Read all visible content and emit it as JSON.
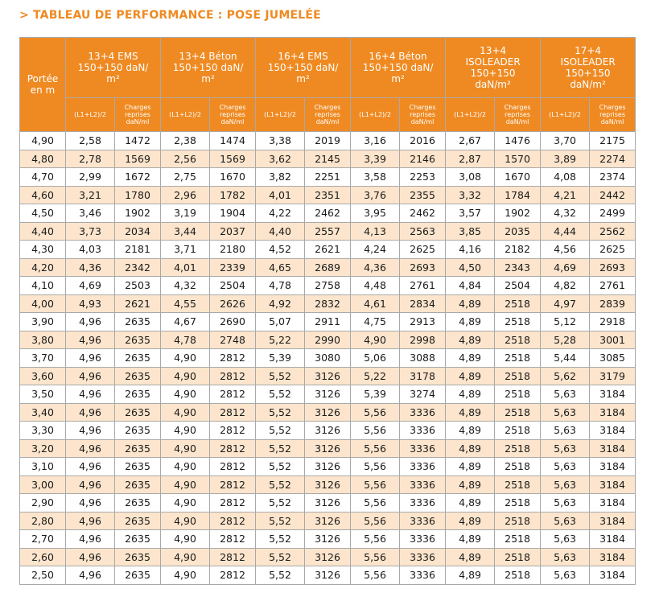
{
  "title": "> TABLEAU DE PERFORMANCE : POSE JUMELÉE",
  "header": {
    "first_col": [
      "Portée",
      "en m"
    ],
    "groups": [
      {
        "lines": [
          "13+4 EMS",
          "150+150 daN/",
          "m²"
        ]
      },
      {
        "lines": [
          "13+4 Béton",
          "150+150 daN/",
          "m²"
        ]
      },
      {
        "lines": [
          "16+4 EMS",
          "150+150 daN/",
          "m²"
        ]
      },
      {
        "lines": [
          "16+4 Béton",
          "150+150 daN/",
          "m²"
        ]
      },
      {
        "lines": [
          "13+4",
          "ISOLEADER",
          "150+150",
          "daN/m²"
        ]
      },
      {
        "lines": [
          "17+4",
          "ISOLEADER",
          "150+150",
          "daN/m²"
        ]
      }
    ],
    "sub_l": "(L1+L2)/2",
    "sub_c": [
      "Charges",
      "reprises",
      "daN/ml"
    ]
  },
  "rows": [
    [
      "4,90",
      "2,58",
      "1472",
      "2,38",
      "1474",
      "3,38",
      "2019",
      "3,16",
      "2016",
      "2,67",
      "1476",
      "3,70",
      "2175"
    ],
    [
      "4,80",
      "2,78",
      "1569",
      "2,56",
      "1569",
      "3,62",
      "2145",
      "3,39",
      "2146",
      "2,87",
      "1570",
      "3,89",
      "2274"
    ],
    [
      "4,70",
      "2,99",
      "1672",
      "2,75",
      "1670",
      "3,82",
      "2251",
      "3,58",
      "2253",
      "3,08",
      "1670",
      "4,08",
      "2374"
    ],
    [
      "4,60",
      "3,21",
      "1780",
      "2,96",
      "1782",
      "4,01",
      "2351",
      "3,76",
      "2355",
      "3,32",
      "1784",
      "4,21",
      "2442"
    ],
    [
      "4,50",
      "3,46",
      "1902",
      "3,19",
      "1904",
      "4,22",
      "2462",
      "3,95",
      "2462",
      "3,57",
      "1902",
      "4,32",
      "2499"
    ],
    [
      "4,40",
      "3,73",
      "2034",
      "3,44",
      "2037",
      "4,40",
      "2557",
      "4,13",
      "2563",
      "3,85",
      "2035",
      "4,44",
      "2562"
    ],
    [
      "4,30",
      "4,03",
      "2181",
      "3,71",
      "2180",
      "4,52",
      "2621",
      "4,24",
      "2625",
      "4,16",
      "2182",
      "4,56",
      "2625"
    ],
    [
      "4,20",
      "4,36",
      "2342",
      "4,01",
      "2339",
      "4,65",
      "2689",
      "4,36",
      "2693",
      "4,50",
      "2343",
      "4,69",
      "2693"
    ],
    [
      "4,10",
      "4,69",
      "2503",
      "4,32",
      "2504",
      "4,78",
      "2758",
      "4,48",
      "2761",
      "4,84",
      "2504",
      "4,82",
      "2761"
    ],
    [
      "4,00",
      "4,93",
      "2621",
      "4,55",
      "2626",
      "4,92",
      "2832",
      "4,61",
      "2834",
      "4,89",
      "2518",
      "4,97",
      "2839"
    ],
    [
      "3,90",
      "4,96",
      "2635",
      "4,67",
      "2690",
      "5,07",
      "2911",
      "4,75",
      "2913",
      "4,89",
      "2518",
      "5,12",
      "2918"
    ],
    [
      "3,80",
      "4,96",
      "2635",
      "4,78",
      "2748",
      "5,22",
      "2990",
      "4,90",
      "2998",
      "4,89",
      "2518",
      "5,28",
      "3001"
    ],
    [
      "3,70",
      "4,96",
      "2635",
      "4,90",
      "2812",
      "5,39",
      "3080",
      "5,06",
      "3088",
      "4,89",
      "2518",
      "5,44",
      "3085"
    ],
    [
      "3,60",
      "4,96",
      "2635",
      "4,90",
      "2812",
      "5,52",
      "3126",
      "5,22",
      "3178",
      "4,89",
      "2518",
      "5,62",
      "3179"
    ],
    [
      "3,50",
      "4,96",
      "2635",
      "4,90",
      "2812",
      "5,52",
      "3126",
      "5,39",
      "3274",
      "4,89",
      "2518",
      "5,63",
      "3184"
    ],
    [
      "3,40",
      "4,96",
      "2635",
      "4,90",
      "2812",
      "5,52",
      "3126",
      "5,56",
      "3336",
      "4,89",
      "2518",
      "5,63",
      "3184"
    ],
    [
      "3,30",
      "4,96",
      "2635",
      "4,90",
      "2812",
      "5,52",
      "3126",
      "5,56",
      "3336",
      "4,89",
      "2518",
      "5,63",
      "3184"
    ],
    [
      "3,20",
      "4,96",
      "2635",
      "4,90",
      "2812",
      "5,52",
      "3126",
      "5,56",
      "3336",
      "4,89",
      "2518",
      "5,63",
      "3184"
    ],
    [
      "3,10",
      "4,96",
      "2635",
      "4,90",
      "2812",
      "5,52",
      "3126",
      "5,56",
      "3336",
      "4,89",
      "2518",
      "5,63",
      "3184"
    ],
    [
      "3,00",
      "4,96",
      "2635",
      "4,90",
      "2812",
      "5,52",
      "3126",
      "5,56",
      "3336",
      "4,89",
      "2518",
      "5,63",
      "3184"
    ],
    [
      "2,90",
      "4,96",
      "2635",
      "4,90",
      "2812",
      "5,52",
      "3126",
      "5,56",
      "3336",
      "4,89",
      "2518",
      "5,63",
      "3184"
    ],
    [
      "2,80",
      "4,96",
      "2635",
      "4,90",
      "2812",
      "5,52",
      "3126",
      "5,56",
      "3336",
      "4,89",
      "2518",
      "5,63",
      "3184"
    ],
    [
      "2,70",
      "4,96",
      "2635",
      "4,90",
      "2812",
      "5,52",
      "3126",
      "5,56",
      "3336",
      "4,89",
      "2518",
      "5,63",
      "3184"
    ],
    [
      "2,60",
      "4,96",
      "2635",
      "4,90",
      "2812",
      "5,52",
      "3126",
      "5,56",
      "3336",
      "4,89",
      "2518",
      "5,63",
      "3184"
    ],
    [
      "2,50",
      "4,96",
      "2635",
      "4,90",
      "2812",
      "5,52",
      "3126",
      "5,56",
      "3336",
      "4,89",
      "2518",
      "5,63",
      "3184"
    ]
  ],
  "colors": {
    "accent": "#ef8a22",
    "stripe": "#fce5cc",
    "border": "#a9a9a9"
  }
}
